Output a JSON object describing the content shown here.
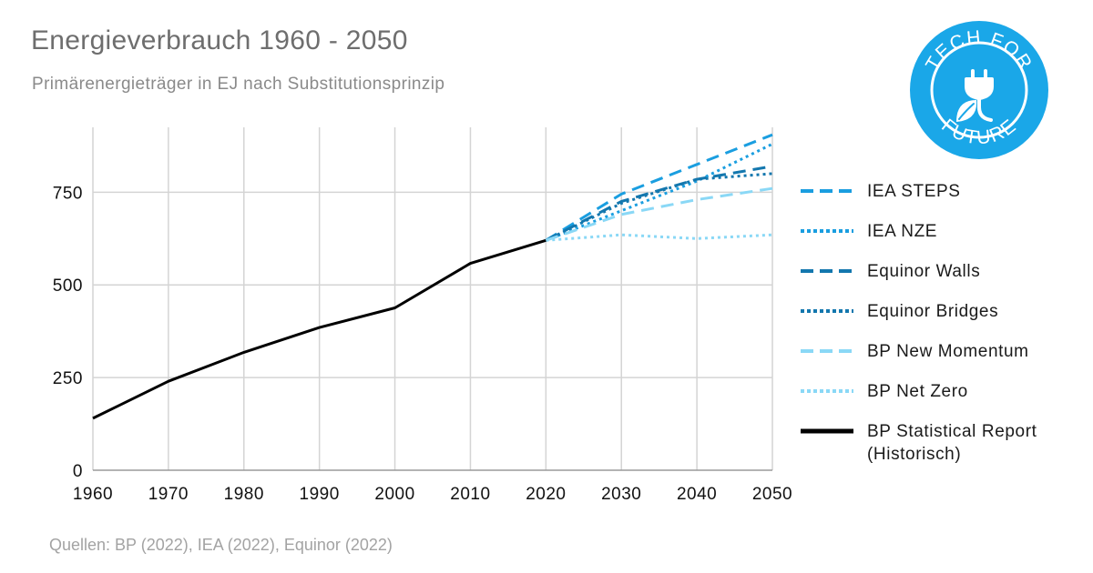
{
  "header": {
    "title": "Energieverbrauch 1960 - 2050",
    "subtitle": "Primärenergieträger in EJ nach Substitutionsprinzip"
  },
  "footer": {
    "source": "Quellen: BP (2022), IEA (2022), Equinor (2022)"
  },
  "logo": {
    "text_top": "TECH FOR",
    "text_bottom": "FUTURE",
    "color": "#1aa7e8",
    "icon": "plug-leaf-icon"
  },
  "chart_data": {
    "type": "line",
    "title": "Energieverbrauch 1960 - 2050",
    "subtitle": "Primärenergieträger in EJ nach Substitutionsprinzip",
    "xlabel": "",
    "ylabel": "",
    "xlim": [
      1960,
      2050
    ],
    "ylim": [
      0,
      925
    ],
    "x_ticks": [
      1960,
      1970,
      1980,
      1990,
      2000,
      2010,
      2020,
      2030,
      2040,
      2050
    ],
    "y_ticks": [
      0,
      250,
      500,
      750
    ],
    "grid": true,
    "legend_position": "right",
    "series": [
      {
        "name": "IEA STEPS",
        "color": "#1a9ee0",
        "dash": "dashed",
        "x": [
          2020,
          2030,
          2040,
          2050
        ],
        "y": [
          620,
          745,
          825,
          905
        ]
      },
      {
        "name": "IEA NZE",
        "color": "#1a9ee0",
        "dash": "dotted",
        "x": [
          2020,
          2030,
          2040,
          2050
        ],
        "y": [
          620,
          700,
          780,
          880
        ]
      },
      {
        "name": "Equinor Walls",
        "color": "#1377ae",
        "dash": "dashed",
        "x": [
          2020,
          2030,
          2040,
          2050
        ],
        "y": [
          620,
          725,
          785,
          820
        ]
      },
      {
        "name": "Equinor Bridges",
        "color": "#1377ae",
        "dash": "dotted",
        "x": [
          2020,
          2030,
          2040,
          2050
        ],
        "y": [
          620,
          720,
          785,
          800
        ]
      },
      {
        "name": "BP New Momentum",
        "color": "#8ad8f6",
        "dash": "dashed",
        "x": [
          2020,
          2030,
          2040,
          2050
        ],
        "y": [
          620,
          690,
          730,
          760
        ]
      },
      {
        "name": "BP Net Zero",
        "color": "#8ad8f6",
        "dash": "dotted",
        "x": [
          2020,
          2030,
          2040,
          2050
        ],
        "y": [
          620,
          635,
          625,
          635
        ]
      },
      {
        "name": "BP Statistical Report\n(Historisch)",
        "color": "#000000",
        "dash": "solid",
        "x": [
          1960,
          1970,
          1980,
          1990,
          2000,
          2010,
          2020
        ],
        "y": [
          140,
          240,
          318,
          385,
          438,
          558,
          620
        ]
      }
    ]
  }
}
